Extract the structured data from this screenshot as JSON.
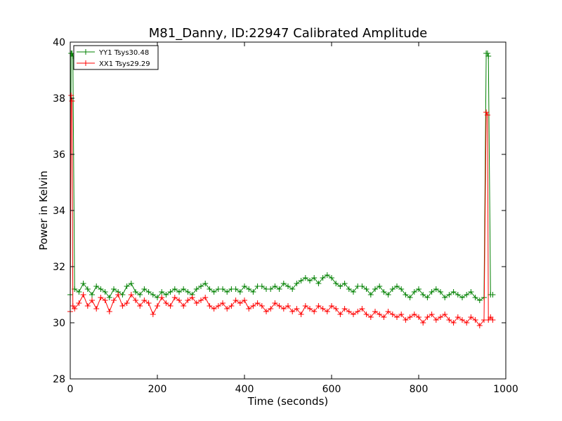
{
  "chart_data": {
    "type": "line",
    "title": "M81_Danny, ID:22947 Calibrated Amplitude",
    "xlabel": "Time (seconds)",
    "ylabel": "Power in Kelvin",
    "xlim": [
      0,
      1000
    ],
    "ylim": [
      28,
      40
    ],
    "xticks": [
      0,
      200,
      400,
      600,
      800,
      1000
    ],
    "yticks": [
      28,
      30,
      32,
      34,
      36,
      38,
      40
    ],
    "grid": false,
    "legend_position": "top-left",
    "marker": "+",
    "series": [
      {
        "name": "YY1 Tsys30.48",
        "color": "#008000",
        "x": [
          0,
          2,
          4,
          6,
          10,
          20,
          30,
          40,
          50,
          60,
          70,
          80,
          90,
          100,
          110,
          120,
          130,
          140,
          150,
          160,
          170,
          180,
          190,
          200,
          210,
          220,
          230,
          240,
          250,
          260,
          270,
          280,
          290,
          300,
          310,
          320,
          330,
          340,
          350,
          360,
          370,
          380,
          390,
          400,
          410,
          420,
          430,
          440,
          450,
          460,
          470,
          480,
          490,
          500,
          510,
          520,
          530,
          540,
          550,
          560,
          570,
          580,
          590,
          600,
          610,
          620,
          630,
          640,
          650,
          660,
          670,
          680,
          690,
          700,
          710,
          720,
          730,
          740,
          750,
          760,
          770,
          780,
          790,
          800,
          810,
          820,
          830,
          840,
          850,
          860,
          870,
          880,
          890,
          900,
          910,
          920,
          930,
          940,
          950,
          955,
          958,
          960,
          965,
          970
        ],
        "y": [
          31.0,
          39.6,
          39.6,
          39.5,
          31.2,
          31.1,
          31.4,
          31.2,
          31.0,
          31.3,
          31.2,
          31.1,
          30.9,
          31.2,
          31.1,
          31.0,
          31.3,
          31.4,
          31.1,
          31.0,
          31.2,
          31.1,
          31.0,
          30.9,
          31.1,
          31.0,
          31.1,
          31.2,
          31.1,
          31.2,
          31.1,
          31.0,
          31.2,
          31.3,
          31.4,
          31.2,
          31.1,
          31.2,
          31.2,
          31.1,
          31.2,
          31.2,
          31.1,
          31.3,
          31.2,
          31.1,
          31.3,
          31.3,
          31.2,
          31.2,
          31.3,
          31.2,
          31.4,
          31.3,
          31.2,
          31.4,
          31.5,
          31.6,
          31.5,
          31.6,
          31.4,
          31.6,
          31.7,
          31.6,
          31.4,
          31.3,
          31.4,
          31.2,
          31.1,
          31.3,
          31.3,
          31.2,
          31.0,
          31.2,
          31.3,
          31.1,
          31.0,
          31.2,
          31.3,
          31.2,
          31.0,
          30.9,
          31.1,
          31.2,
          31.0,
          30.9,
          31.1,
          31.2,
          31.1,
          30.9,
          31.0,
          31.1,
          31.0,
          30.9,
          31.0,
          31.1,
          30.9,
          30.8,
          30.9,
          39.6,
          39.6,
          39.5,
          31.0,
          31.0
        ]
      },
      {
        "name": "XX1 Tsys29.29",
        "color": "#ff0000",
        "x": [
          0,
          2,
          4,
          6,
          10,
          20,
          30,
          40,
          50,
          60,
          70,
          80,
          90,
          100,
          110,
          120,
          130,
          140,
          150,
          160,
          170,
          180,
          190,
          200,
          210,
          220,
          230,
          240,
          250,
          260,
          270,
          280,
          290,
          300,
          310,
          320,
          330,
          340,
          350,
          360,
          370,
          380,
          390,
          400,
          410,
          420,
          430,
          440,
          450,
          460,
          470,
          480,
          490,
          500,
          510,
          520,
          530,
          540,
          550,
          560,
          570,
          580,
          590,
          600,
          610,
          620,
          630,
          640,
          650,
          660,
          670,
          680,
          690,
          700,
          710,
          720,
          730,
          740,
          750,
          760,
          770,
          780,
          790,
          800,
          810,
          820,
          830,
          840,
          850,
          860,
          870,
          880,
          890,
          900,
          910,
          920,
          930,
          940,
          950,
          955,
          958,
          960,
          965,
          970
        ],
        "y": [
          30.4,
          38.1,
          37.9,
          30.6,
          30.5,
          30.7,
          31.0,
          30.6,
          30.8,
          30.5,
          30.9,
          30.8,
          30.4,
          30.8,
          31.0,
          30.6,
          30.7,
          31.0,
          30.8,
          30.6,
          30.8,
          30.7,
          30.3,
          30.6,
          30.9,
          30.7,
          30.6,
          30.9,
          30.8,
          30.6,
          30.8,
          30.9,
          30.7,
          30.8,
          30.9,
          30.6,
          30.5,
          30.6,
          30.7,
          30.5,
          30.6,
          30.8,
          30.7,
          30.8,
          30.5,
          30.6,
          30.7,
          30.6,
          30.4,
          30.5,
          30.7,
          30.6,
          30.5,
          30.6,
          30.4,
          30.5,
          30.3,
          30.6,
          30.5,
          30.4,
          30.6,
          30.5,
          30.4,
          30.6,
          30.5,
          30.3,
          30.5,
          30.4,
          30.3,
          30.4,
          30.5,
          30.3,
          30.2,
          30.4,
          30.3,
          30.2,
          30.4,
          30.3,
          30.2,
          30.3,
          30.1,
          30.2,
          30.3,
          30.2,
          30.0,
          30.2,
          30.3,
          30.1,
          30.2,
          30.3,
          30.1,
          30.0,
          30.2,
          30.1,
          30.0,
          30.2,
          30.1,
          29.9,
          30.1,
          37.5,
          37.4,
          30.1,
          30.2,
          30.1
        ]
      }
    ]
  }
}
